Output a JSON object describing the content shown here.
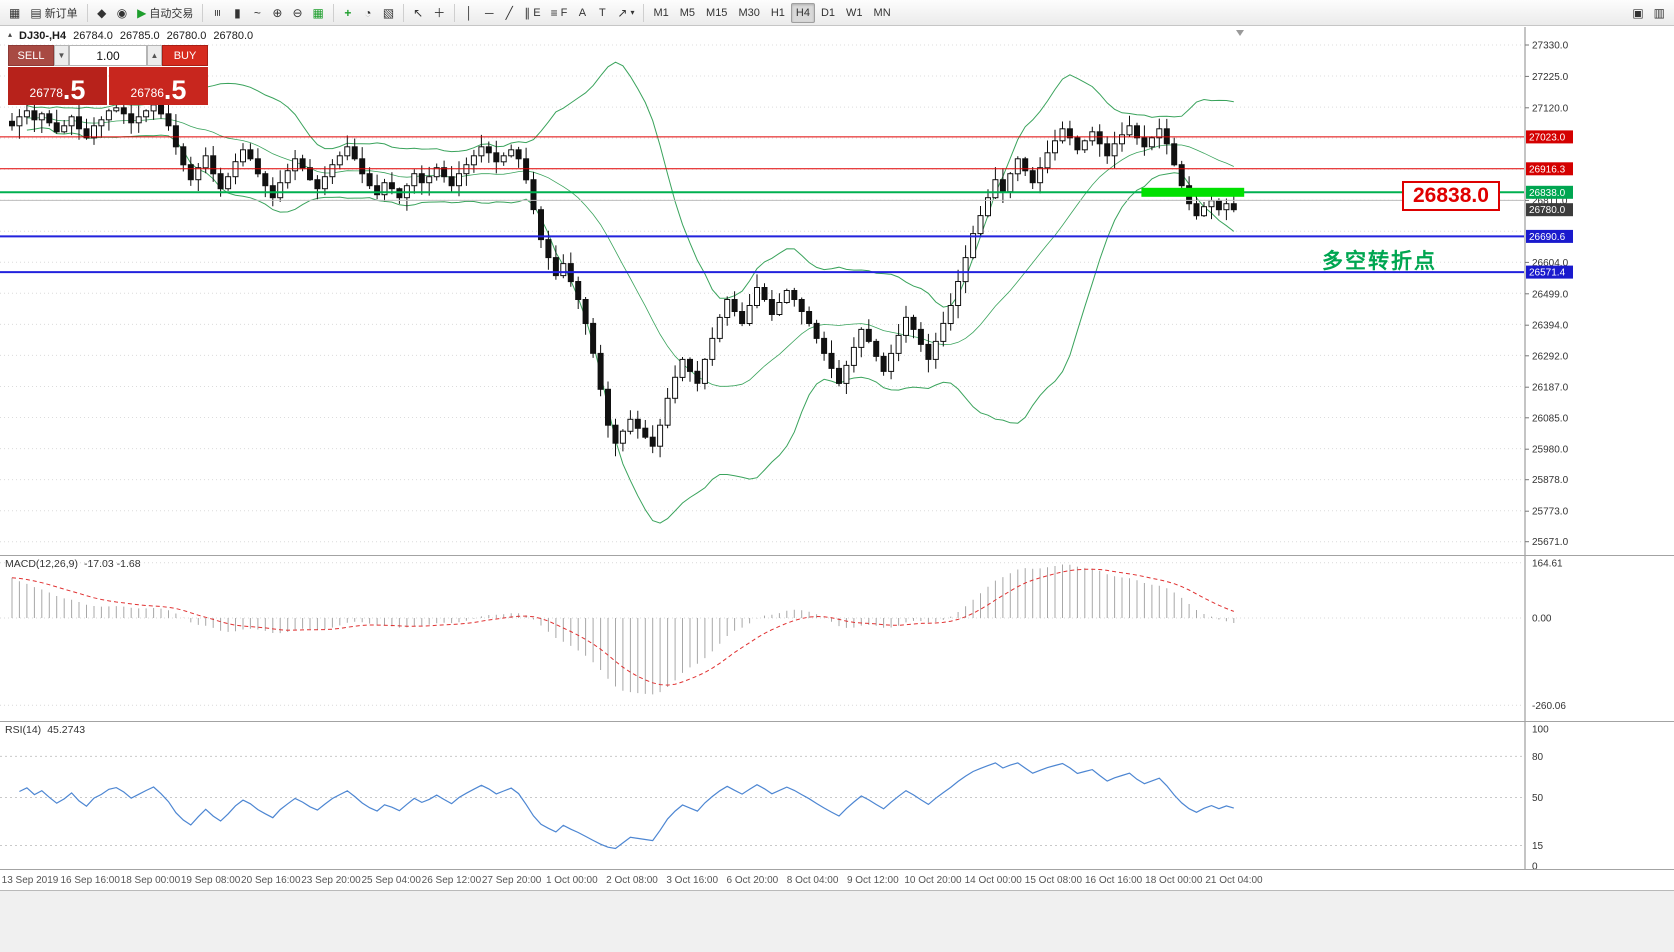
{
  "toolbar": {
    "new_order": "新订单",
    "auto_trading": "自动交易",
    "timeframes": [
      "M1",
      "M5",
      "M15",
      "M30",
      "H1",
      "H4",
      "D1",
      "W1",
      "MN"
    ],
    "active_timeframe": "H4",
    "tools": {
      "channel": "E",
      "fibonacci": "F",
      "text": "A",
      "label": "T"
    }
  },
  "trade_panel": {
    "sell_label": "SELL",
    "buy_label": "BUY",
    "volume": "1.00",
    "sell_price": {
      "main": "26778",
      "big": ".5"
    },
    "buy_price": {
      "main": "26786",
      "big": ".5"
    }
  },
  "chart_header": {
    "symbol_period": "DJ30-,H4",
    "open": "26784.0",
    "high": "26785.0",
    "low": "26780.0",
    "close": "26780.0"
  },
  "annotations": {
    "price_box": "26838.0",
    "turning_point": "多空转折点"
  },
  "price_axis": {
    "plain_labels": [
      {
        "price": 27330.0,
        "label": "27330.0"
      },
      {
        "price": 27225.0,
        "label": "27225.0"
      },
      {
        "price": 27120.0,
        "label": "27120.0"
      },
      {
        "price": 26811.0,
        "label": "26811.0"
      },
      {
        "price": 26604.0,
        "label": "26604.0"
      },
      {
        "price": 26499.0,
        "label": "26499.0"
      },
      {
        "price": 26394.0,
        "label": "26394.0"
      },
      {
        "price": 26292.0,
        "label": "26292.0"
      },
      {
        "price": 26187.0,
        "label": "26187.0"
      },
      {
        "price": 26085.0,
        "label": "26085.0"
      },
      {
        "price": 25980.0,
        "label": "25980.0"
      },
      {
        "price": 25878.0,
        "label": "25878.0"
      },
      {
        "price": 25773.0,
        "label": "25773.0"
      },
      {
        "price": 25671.0,
        "label": "25671.0"
      }
    ],
    "badges": [
      {
        "price": 27023.0,
        "label": "27023.0",
        "bg": "#d40000"
      },
      {
        "price": 26916.3,
        "label": "26916.3",
        "bg": "#d40000"
      },
      {
        "price": 26838.0,
        "label": "26838.0",
        "bg": "#00a651"
      },
      {
        "price": 26780.0,
        "label": "26780.0",
        "bg": "#3c3c3c"
      },
      {
        "price": 26690.6,
        "label": "26690.6",
        "bg": "#1a1acd"
      },
      {
        "price": 26571.4,
        "label": "26571.4",
        "bg": "#1a1acd"
      }
    ]
  },
  "hlines": [
    {
      "price": 27023.0,
      "color": "#e00000",
      "width": 1
    },
    {
      "price": 26916.3,
      "color": "#e00000",
      "width": 1
    },
    {
      "price": 26838.0,
      "color": "#00b050",
      "width": 2
    },
    {
      "price": 26811.0,
      "color": "#bdbdbd",
      "width": 1
    },
    {
      "price": 26690.6,
      "color": "#2222dd",
      "width": 2
    },
    {
      "price": 26571.4,
      "color": "#2222dd",
      "width": 2
    }
  ],
  "highlight_bar": {
    "price": 26838.0,
    "from_candle": 152,
    "to_candle": 165,
    "color": "#00e000"
  },
  "indicators": {
    "macd": {
      "name": "MACD(12,26,9)",
      "values": "-17.03 -1.68",
      "axis": [
        {
          "v": 164.61,
          "label": "164.61"
        },
        {
          "v": 0,
          "label": "0.00"
        },
        {
          "v": -260.06,
          "label": "-260.06"
        }
      ]
    },
    "rsi": {
      "name": "RSI(14)",
      "value": "45.2743",
      "axis": [
        {
          "v": 100,
          "label": "100"
        },
        {
          "v": 80,
          "label": "80"
        },
        {
          "v": 50,
          "label": "50"
        },
        {
          "v": 15,
          "label": "15"
        },
        {
          "v": 0,
          "label": "0"
        }
      ],
      "levels": [
        80,
        50,
        15
      ]
    }
  },
  "date_axis": [
    "13 Sep 2019",
    "16 Sep 16:00",
    "18 Sep 00:00",
    "19 Sep 08:00",
    "20 Sep 16:00",
    "23 Sep 20:00",
    "25 Sep 04:00",
    "26 Sep 12:00",
    "27 Sep 20:00",
    "1 Oct 00:00",
    "2 Oct 08:00",
    "3 Oct 16:00",
    "6 Oct 20:00",
    "8 Oct 04:00",
    "9 Oct 12:00",
    "10 Oct 20:00",
    "14 Oct 00:00",
    "15 Oct 08:00",
    "16 Oct 16:00",
    "18 Oct 00:00",
    "21 Oct 04:00"
  ],
  "chart_data": {
    "type": "candlestick",
    "symbol": "DJ30-",
    "timeframe": "H4",
    "price_range": [
      25671.0,
      27330.0
    ],
    "overlays": [
      "Bollinger(20,2)"
    ],
    "band_color": "#3aa35c",
    "key_levels": [
      27023.0,
      26916.3,
      26838.0,
      26811.0,
      26690.6,
      26571.4
    ],
    "current_price": 26780.0,
    "closes": [
      27060,
      27090,
      27110,
      27080,
      27100,
      27070,
      27040,
      27060,
      27090,
      27050,
      27020,
      27060,
      27080,
      27110,
      27120,
      27100,
      27070,
      27090,
      27110,
      27130,
      27100,
      27060,
      26990,
      26930,
      26880,
      26920,
      26960,
      26900,
      26850,
      26890,
      26940,
      26980,
      26950,
      26900,
      26860,
      26820,
      26870,
      26910,
      26950,
      26920,
      26880,
      26850,
      26890,
      26930,
      26960,
      26990,
      26950,
      26900,
      26860,
      26830,
      26870,
      26850,
      26820,
      26860,
      26900,
      26870,
      26890,
      26920,
      26890,
      26860,
      26900,
      26930,
      26960,
      26990,
      26970,
      26940,
      26960,
      26980,
      26950,
      26880,
      26780,
      26680,
      26620,
      26560,
      26600,
      26540,
      26480,
      26400,
      26300,
      26180,
      26060,
      26000,
      26040,
      26080,
      26050,
      26020,
      25990,
      26060,
      26150,
      26220,
      26280,
      26240,
      26200,
      26280,
      26350,
      26420,
      26480,
      26440,
      26400,
      26460,
      26520,
      26480,
      26430,
      26470,
      26510,
      26480,
      26440,
      26400,
      26350,
      26300,
      26250,
      26200,
      26260,
      26320,
      26380,
      26340,
      26290,
      26240,
      26300,
      26360,
      26420,
      26380,
      26330,
      26280,
      26340,
      26400,
      26460,
      26540,
      26620,
      26700,
      26760,
      26820,
      26880,
      26840,
      26900,
      26950,
      26910,
      26870,
      26920,
      26970,
      27010,
      27050,
      27020,
      26980,
      27010,
      27040,
      27000,
      26960,
      27000,
      27030,
      27060,
      27020,
      26990,
      27020,
      27050,
      27000,
      26930,
      26860,
      26800,
      26760,
      26790,
      26810,
      26780,
      26800,
      26780
    ]
  }
}
